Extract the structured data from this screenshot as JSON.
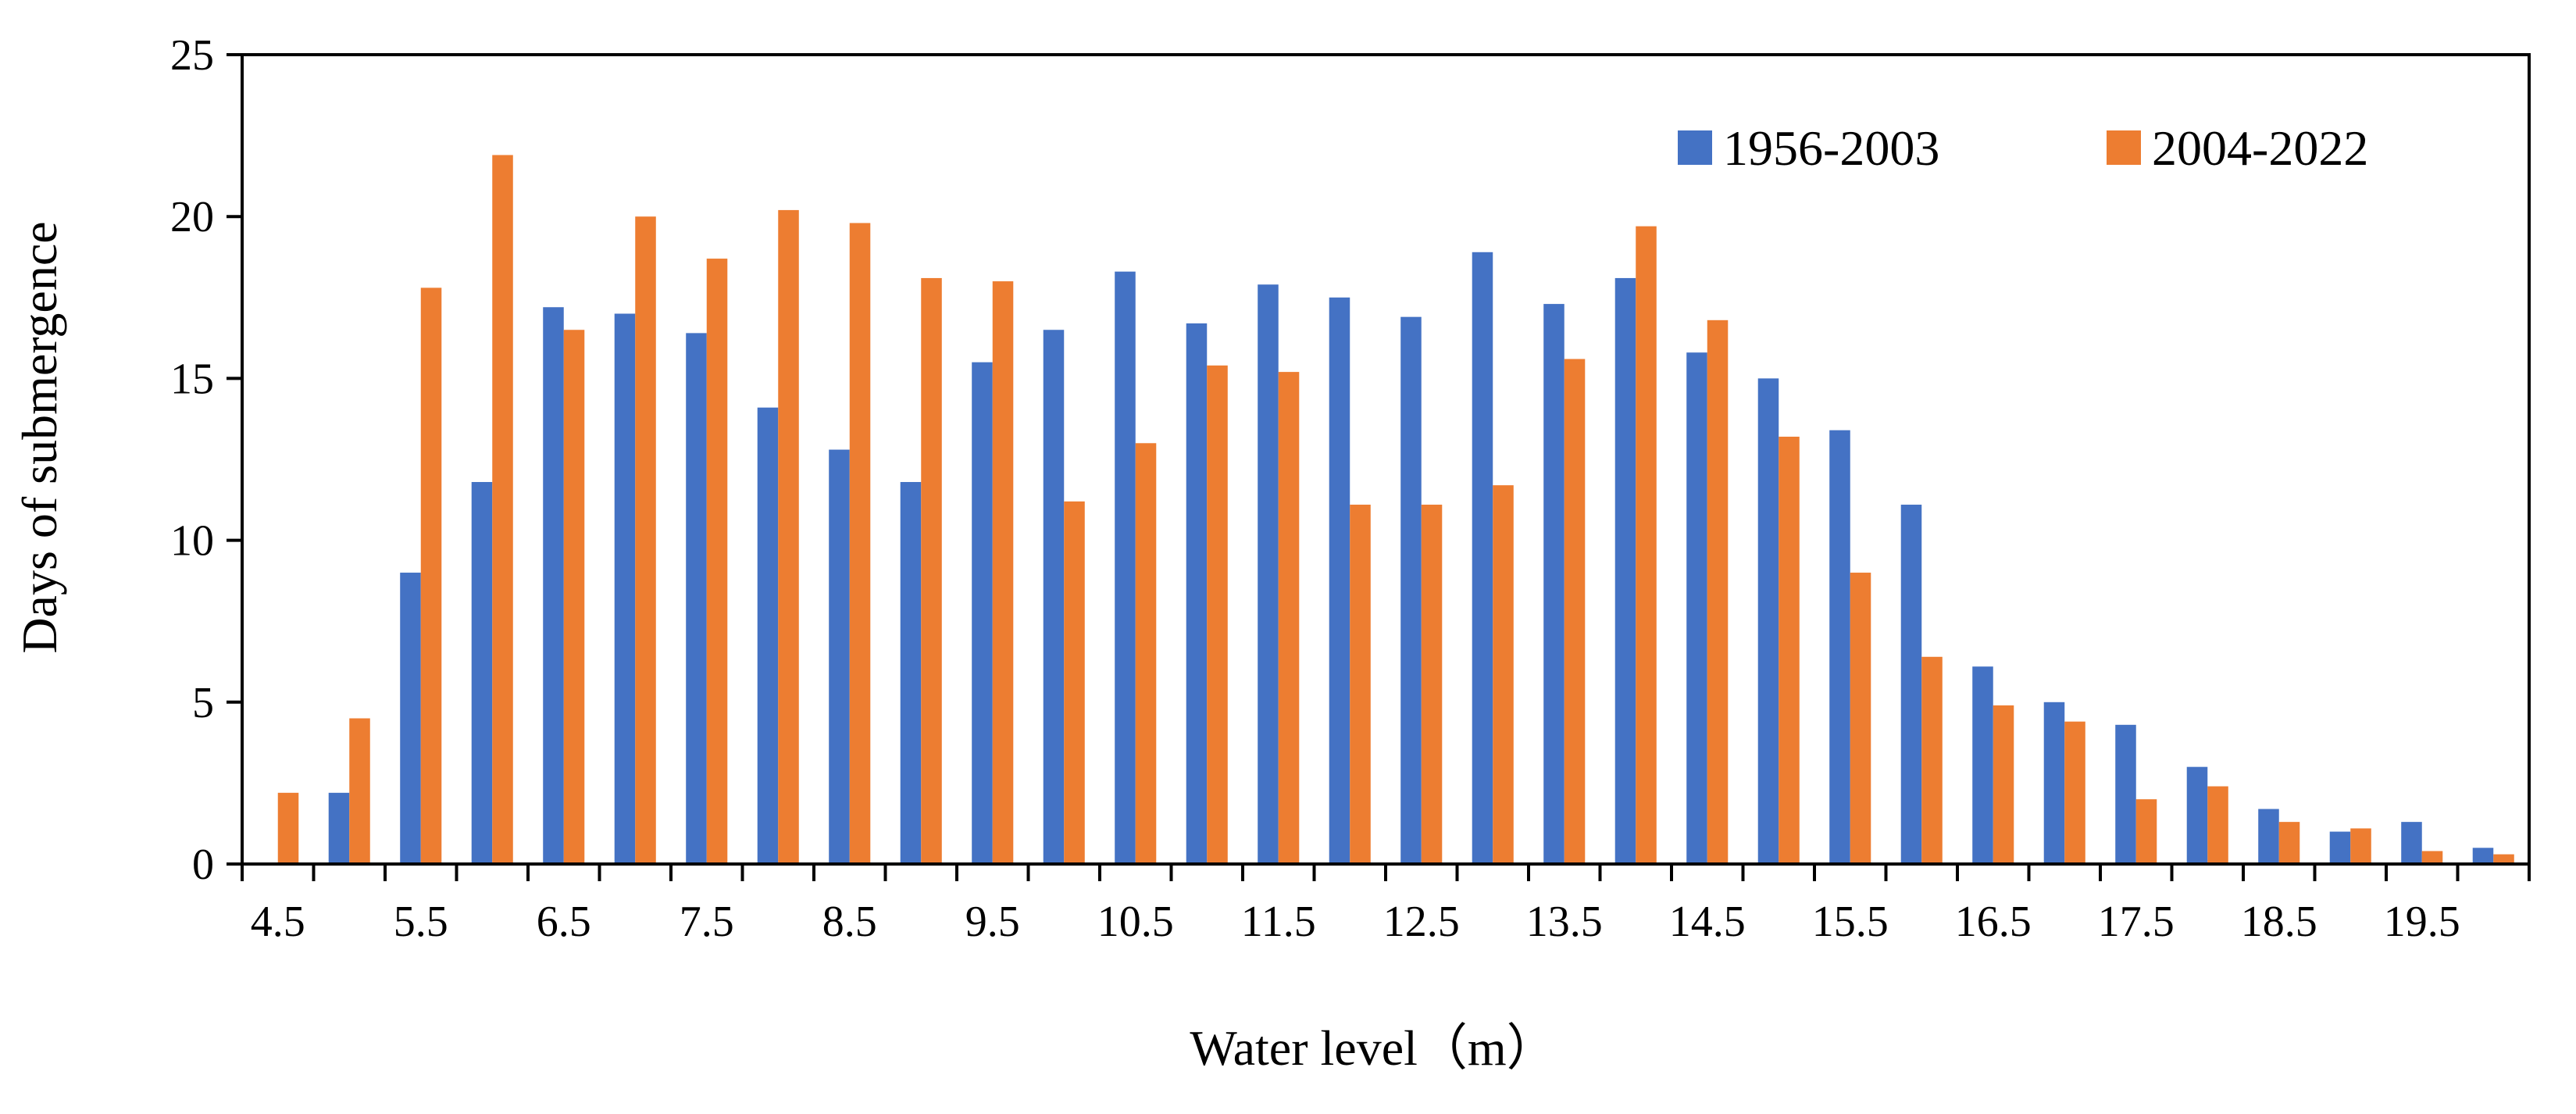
{
  "chart_data": {
    "type": "bar",
    "title": "",
    "xlabel": "Water level（m）",
    "ylabel": "Days of submergence",
    "ylim": [
      0,
      25
    ],
    "yticks": [
      "0",
      "5",
      "10",
      "15",
      "20",
      "25"
    ],
    "xtick_labels": [
      "4.5",
      "5.5",
      "6.5",
      "7.5",
      "8.5",
      "9.5",
      "10.5",
      "11.5",
      "12.5",
      "13.5",
      "14.5",
      "15.5",
      "16.5",
      "17.5",
      "18.5",
      "19.5"
    ],
    "categories": [
      "4.5",
      "5",
      "5.5",
      "6",
      "6.5",
      "7",
      "7.5",
      "8",
      "8.5",
      "9",
      "9.5",
      "10",
      "10.5",
      "11",
      "11.5",
      "12",
      "12.5",
      "13",
      "13.5",
      "14",
      "14.5",
      "15",
      "15.5",
      "16",
      "16.5",
      "17",
      "17.5",
      "18",
      "18.5",
      "19",
      "19.5",
      "20"
    ],
    "series": [
      {
        "name": "1956-2003",
        "color": "#4472c4",
        "values": [
          0,
          2.2,
          9.0,
          11.8,
          17.2,
          17.0,
          16.4,
          14.1,
          12.8,
          11.8,
          15.5,
          16.5,
          18.3,
          16.7,
          17.9,
          17.5,
          16.9,
          18.9,
          17.3,
          18.1,
          15.8,
          15.0,
          13.4,
          11.1,
          6.1,
          5.0,
          4.3,
          3.0,
          1.7,
          1.0,
          1.3,
          0.5
        ]
      },
      {
        "name": "2004-2022",
        "color": "#ed7d31",
        "values": [
          2.2,
          4.5,
          17.8,
          21.9,
          16.5,
          20.0,
          18.7,
          20.2,
          19.8,
          18.1,
          18.0,
          11.2,
          13.0,
          15.4,
          15.2,
          11.1,
          11.1,
          11.7,
          15.6,
          19.7,
          16.8,
          13.2,
          9.0,
          6.4,
          4.9,
          4.4,
          2.0,
          2.4,
          1.3,
          1.1,
          0.4,
          0.3
        ]
      }
    ],
    "grid": false,
    "legend_position": "top-right"
  }
}
